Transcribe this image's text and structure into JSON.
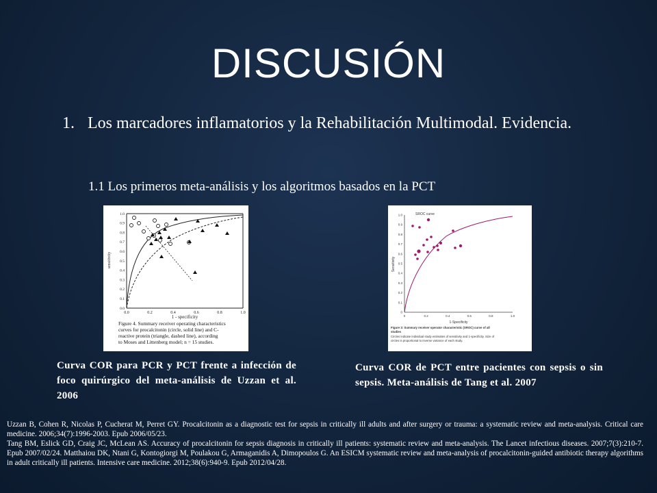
{
  "slide": {
    "title": "DISCUSIÓN",
    "point_number": "1.",
    "point_text": "Los marcadores inflamatorios y la Rehabilitación Multimodal. Evidencia.",
    "subpoint": "1.1 Los primeros meta-análisis y los algoritmos basados en la PCT"
  },
  "figure1": {
    "caption_lines": [
      "Figure 4. Summary receiver operating characteristics",
      "curves for procalcitonin (circle, solid line) and C-",
      "reactive protein (triangle, dashed line), according",
      "to Moses and Littenberg model; n = 15 studies."
    ],
    "xlabel": "1 - specificity",
    "ylabel": "sensitivity",
    "xticks": [
      "0.0",
      "0.2",
      "0.4",
      "0.6",
      "0.8",
      "1.0"
    ],
    "yticks": [
      "0.0",
      "0.1",
      "0.2",
      "0.3",
      "0.4",
      "0.5",
      "0.6",
      "0.7",
      "0.8",
      "0.9",
      "1.0"
    ]
  },
  "figure2": {
    "chart_title": "SROC curve",
    "xlabel": "1-Specificity",
    "ylabel": "Sensitivity",
    "xticks": [
      "0",
      "0.2",
      "0.4",
      "0.6",
      "0.8",
      "1.0"
    ],
    "yticks": [
      "0",
      "0.1",
      "0.2",
      "0.3",
      "0.4",
      "0.5",
      "0.6",
      "0.7",
      "0.8",
      "0.9",
      "1.0"
    ],
    "caption_lines": [
      "Figure 3: Summary receiver operator characteristic (SROC) curve of all",
      "studies",
      "Circles indicate individual study estimates of sensitivity and 1-specificity. Size of",
      "circles is proportional to inverse variance of each study."
    ],
    "accent_color": "#a0176b"
  },
  "captions": {
    "caption1": "Curva COR para PCR y PCT frente a infección de foco quirúrgico del meta-análisis de Uzzan et al. 2006",
    "caption2": "Curva COR de PCT entre pacientes con sepsis o sin sepsis. Meta-análisis de Tang et al. 2007"
  },
  "references": [
    "Uzzan B, Cohen R, Nicolas P, Cucherat M, Perret GY. Procalcitonin as a diagnostic test for sepsis in critically ill adults and after surgery or trauma: a systematic review and meta-analysis. Critical care medicine. 2006;34(7):1996-2003. Epub 2006/05/23.",
    "Tang BM, Eslick GD, Craig JC, McLean AS. Accuracy of procalcitonin for sepsis diagnosis in critically ill patients: systematic review and meta-analysis. The Lancet infectious diseases. 2007;7(3):210-7. Epub 2007/02/24. Matthaiou DK, Ntani G, Kontogiorgi M, Poulakou G, Armaganidis A, Dimopoulos G. An ESICM systematic review and meta-analysis of procalcitonin-guided antibiotic therapy algorithms in adult critically ill patients. Intensive care medicine. 2012;38(6):940-9. Epub 2012/04/28."
  ]
}
